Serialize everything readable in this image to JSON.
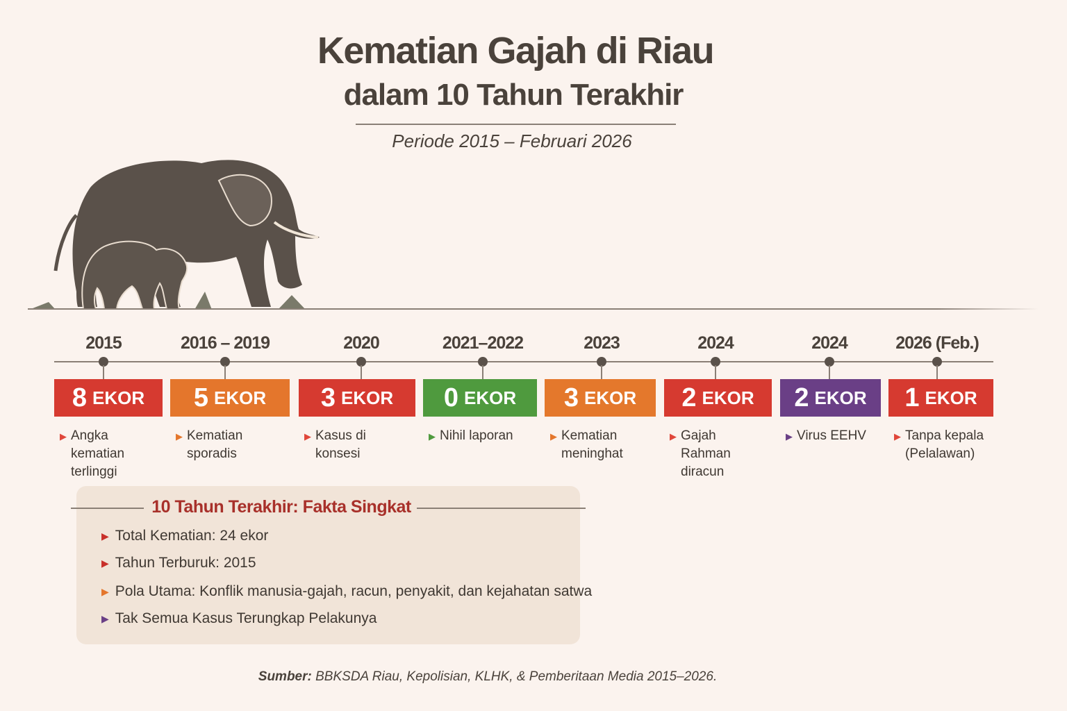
{
  "header": {
    "title": "Kematian Gajah di Riau",
    "subtitle": "dalam 10 Tahun Terakhir",
    "period": "Periode 2015 – Februari 2026"
  },
  "timeline": [
    {
      "year": "2015",
      "count": "8",
      "unit": "EKOR",
      "color": "#d63a30",
      "desc": "Angka kematian terlinggi",
      "tri_color": "#e0463a"
    },
    {
      "year": "2016 – 2019",
      "count": "5",
      "unit": "EKOR",
      "color": "#e4762c",
      "desc": "Kematian sporadis",
      "tri_color": "#e4762c"
    },
    {
      "year": "2020",
      "count": "3",
      "unit": "EKOR",
      "color": "#d63a30",
      "desc": "Kasus di konsesi",
      "tri_color": "#e0463a"
    },
    {
      "year": "2021–2022",
      "count": "0",
      "unit": "EKOR",
      "color": "#4f9a3e",
      "desc": "Nihil laporan",
      "tri_color": "#4f9a3e"
    },
    {
      "year": "2023",
      "count": "3",
      "unit": "EKOR",
      "color": "#e4782c",
      "desc": "Kematian meninghat",
      "tri_color": "#e4762c"
    },
    {
      "year": "2024",
      "count": "2",
      "unit": "EKOR",
      "color": "#d63a30",
      "desc": "Gajah Rahman diracun",
      "tri_color": "#e0463a"
    },
    {
      "year": "2024",
      "count": "2",
      "unit": "EKOR",
      "color": "#6a3f86",
      "desc": "Virus EEHV",
      "tri_color": "#6a3f86"
    },
    {
      "year": "2026 (Feb.)",
      "count": "1",
      "unit": "EKOR",
      "color": "#d63a30",
      "desc": "Tanpa kepala (Pelalawan)",
      "tri_color": "#e0463a"
    }
  ],
  "facts": {
    "title": "10 Tahun Terakhir: Fakta Singkat",
    "items": [
      {
        "text": "Total Kematian: 24 ekor",
        "tri_color": "#c8302a"
      },
      {
        "text": "Tahun Terburuk: 2015",
        "tri_color": "#c8302a"
      },
      {
        "text": "Pola Utama: Konflik manusia-gajah, racun, penyakit, dan kejahatan satwa",
        "tri_color": "#e4762c"
      },
      {
        "text": "Tak Semua Kasus Terungkap Pelakunya",
        "tri_color": "#6a3f86"
      }
    ]
  },
  "source": {
    "label": "Sumber:",
    "text": " BBKSDA Riau, Kepolisian, KLHK, & Pemberitaan Media 2015–2026."
  }
}
